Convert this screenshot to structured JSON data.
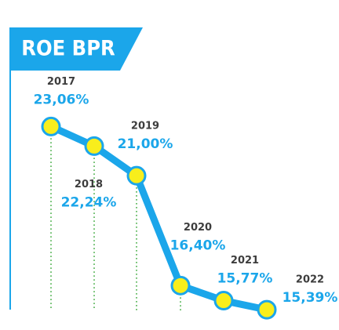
{
  "chart_data": {
    "type": "line",
    "title": "ROE BPR",
    "categories": [
      "2017",
      "2018",
      "2019",
      "2020",
      "2021",
      "2022"
    ],
    "values": [
      23.06,
      22.24,
      21.0,
      16.4,
      15.77,
      15.39
    ],
    "value_labels": [
      "23,06%",
      "22,24%",
      "21,00%",
      "16,40%",
      "15,77%",
      "15,39%"
    ],
    "color": "#1ba6ea",
    "marker_color": "#f8ee1c",
    "ylim": [
      15,
      23.5
    ]
  }
}
